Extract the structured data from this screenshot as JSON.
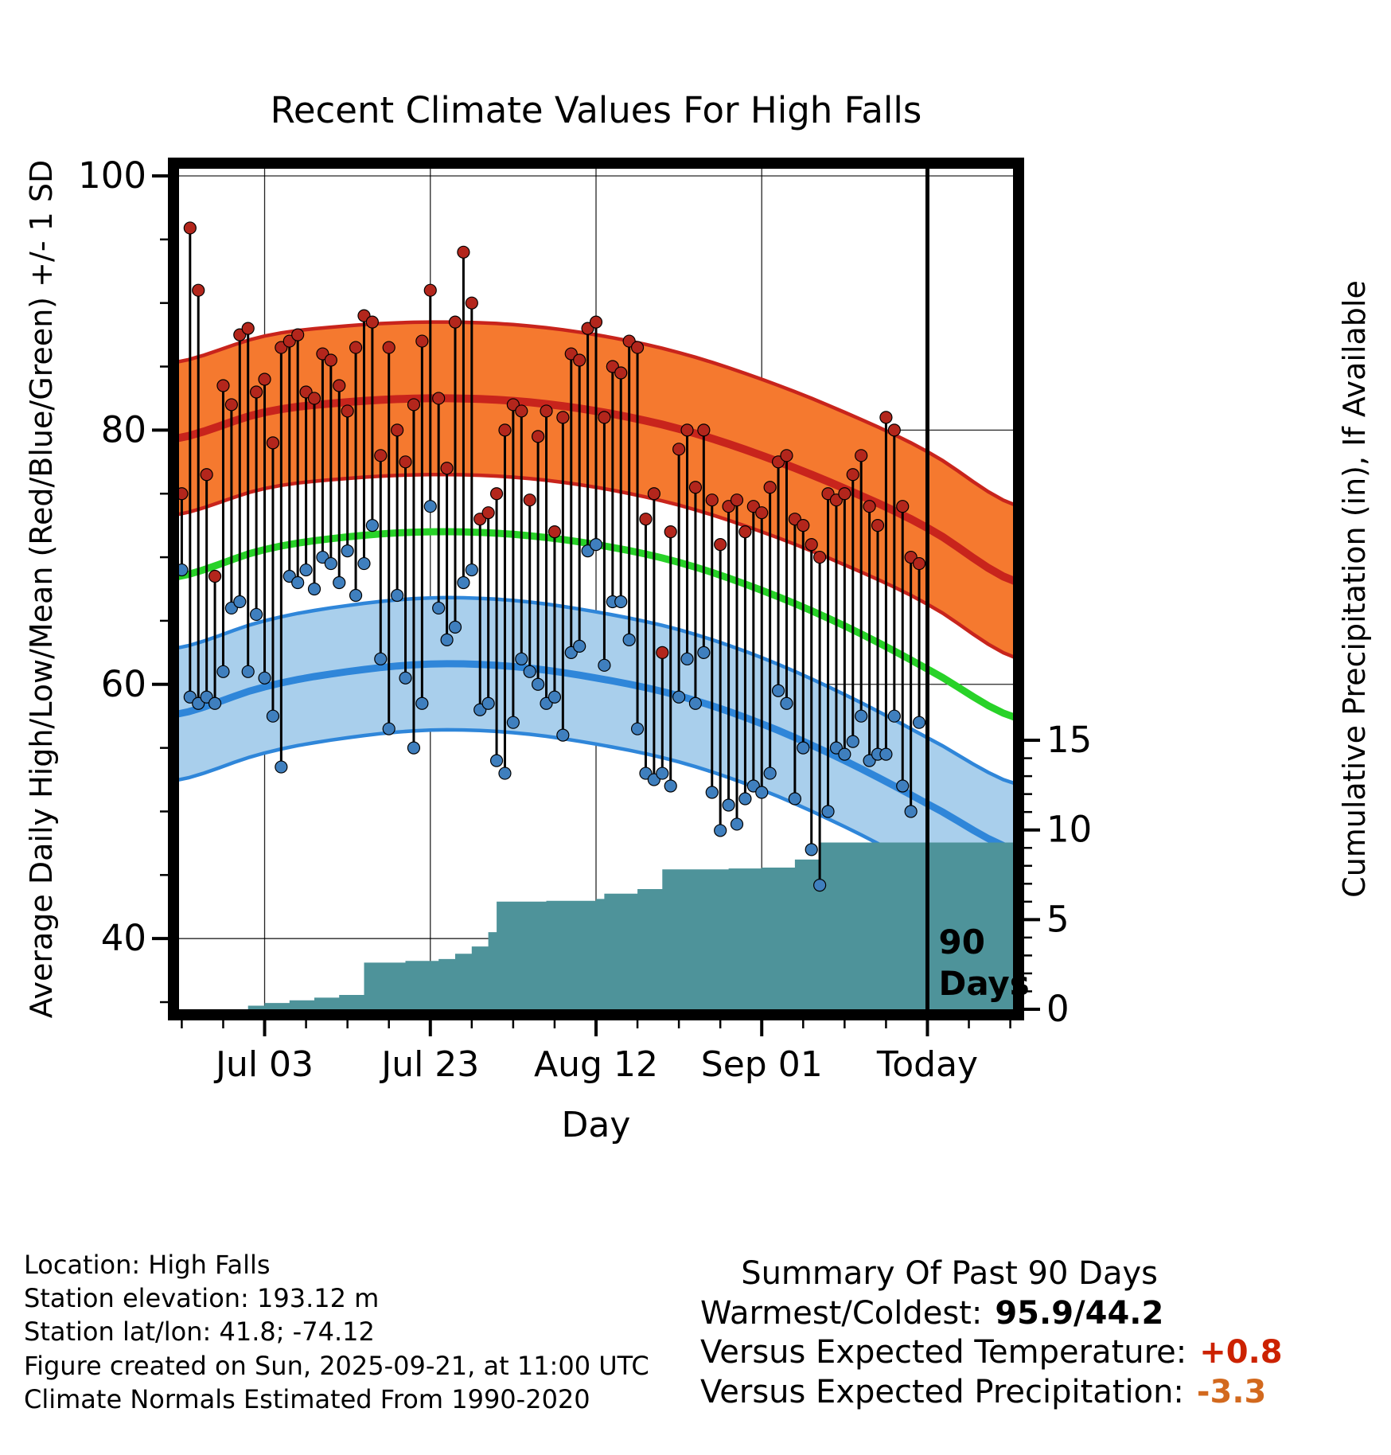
{
  "title": "Recent Climate Values For High Falls",
  "chart_data": {
    "type": "climate-composite",
    "title": "Recent Climate Values For High Falls",
    "x": {
      "label": "Day",
      "range": [
        -1,
        101
      ],
      "ticks": [
        {
          "day": 10,
          "label": "Jul 03"
        },
        {
          "day": 30,
          "label": "Jul 23"
        },
        {
          "day": 50,
          "label": "Aug 12"
        },
        {
          "day": 70,
          "label": "Sep 01"
        },
        {
          "day": 90,
          "label": "Today"
        }
      ],
      "minor_tick_step_days": 5
    },
    "y_temp": {
      "label": "Average Daily High/Low/Mean (Red/Blue/Green) +/- 1 SD",
      "range": [
        34,
        101
      ],
      "ticks": [
        40,
        60,
        80,
        100
      ],
      "minor_tick_step": 5
    },
    "y_precip": {
      "label": "Cumulative Precipitation (in), If Available",
      "ticks": [
        0,
        5,
        10,
        15
      ],
      "minor_tick_step": 1
    },
    "climatology": {
      "days": [
        -1,
        10,
        20,
        30,
        40,
        50,
        60,
        70,
        80,
        90,
        101
      ],
      "high_mean": [
        79.3,
        81.4,
        82.2,
        82.5,
        82.3,
        81.5,
        80.1,
        78.0,
        75.4,
        72.3,
        68.0
      ],
      "high_sd": 6.0,
      "mean": [
        68.4,
        70.6,
        71.6,
        72.0,
        71.8,
        71.0,
        69.6,
        67.4,
        64.6,
        61.2,
        57.3
      ],
      "low_mean": [
        57.6,
        59.8,
        61.0,
        61.6,
        61.4,
        60.5,
        59.1,
        56.9,
        54.0,
        50.6,
        46.9
      ],
      "low_sd": 5.2
    },
    "daily": {
      "first_day_index": 0,
      "highs": [
        75.0,
        95.9,
        91.0,
        76.5,
        68.5,
        83.5,
        82.0,
        87.5,
        88.0,
        83.0,
        84.0,
        79.0,
        86.5,
        87.0,
        87.5,
        83.0,
        82.5,
        86.0,
        85.5,
        83.5,
        81.5,
        86.5,
        89.0,
        88.5,
        78.0,
        86.5,
        80.0,
        77.5,
        82.0,
        87.0,
        91.0,
        82.5,
        77.0,
        88.5,
        94.0,
        90.0,
        73.0,
        73.5,
        75.0,
        80.0,
        82.0,
        81.5,
        74.5,
        79.5,
        81.5,
        72.0,
        81.0,
        86.0,
        85.5,
        88.0,
        88.5,
        81.0,
        85.0,
        84.5,
        87.0,
        86.5,
        73.0,
        75.0,
        62.5,
        72.0,
        78.5,
        80.0,
        75.5,
        80.0,
        74.5,
        71.0,
        74.0,
        74.5,
        72.0,
        74.0,
        73.5,
        75.5,
        77.5,
        78.0,
        73.0,
        72.5,
        71.0,
        70.0,
        75.0,
        74.5,
        75.0,
        76.5,
        78.0,
        74.0,
        72.5,
        81.0,
        80.0,
        74.0,
        70.0,
        69.5
      ],
      "lows": [
        69.0,
        59.0,
        58.5,
        59.0,
        58.5,
        61.0,
        66.0,
        66.5,
        61.0,
        65.5,
        60.5,
        57.5,
        53.5,
        68.5,
        68.0,
        69.0,
        67.5,
        70.0,
        69.5,
        68.0,
        70.5,
        67.0,
        69.5,
        72.5,
        62.0,
        56.5,
        67.0,
        60.5,
        55.0,
        58.5,
        74.0,
        66.0,
        63.5,
        64.5,
        68.0,
        69.0,
        58.0,
        58.5,
        54.0,
        53.0,
        57.0,
        62.0,
        61.0,
        60.0,
        58.5,
        59.0,
        56.0,
        62.5,
        63.0,
        70.5,
        71.0,
        61.5,
        66.5,
        66.5,
        63.5,
        56.5,
        53.0,
        52.5,
        53.0,
        52.0,
        59.0,
        62.0,
        58.5,
        62.5,
        51.5,
        48.5,
        50.5,
        49.0,
        51.0,
        52.0,
        51.5,
        53.0,
        59.5,
        58.5,
        51.0,
        55.0,
        47.0,
        44.2,
        50.0,
        55.0,
        54.5,
        55.5,
        57.5,
        54.0,
        54.5,
        54.5,
        57.5,
        52.0,
        50.0,
        57.0
      ]
    },
    "cumulative_precip_steps": [
      [
        0,
        0.0
      ],
      [
        8,
        0.2
      ],
      [
        10,
        0.35
      ],
      [
        13,
        0.5
      ],
      [
        16,
        0.65
      ],
      [
        19,
        0.8
      ],
      [
        22,
        2.6
      ],
      [
        27,
        2.7
      ],
      [
        31,
        2.8
      ],
      [
        33,
        3.1
      ],
      [
        35,
        3.5
      ],
      [
        37,
        4.3
      ],
      [
        38,
        6.0
      ],
      [
        44,
        6.05
      ],
      [
        50,
        6.15
      ],
      [
        51,
        6.45
      ],
      [
        55,
        6.7
      ],
      [
        58,
        7.8
      ],
      [
        66,
        7.85
      ],
      [
        70,
        7.9
      ],
      [
        74,
        8.35
      ],
      [
        77,
        9.3
      ],
      [
        101,
        9.3
      ]
    ],
    "annotation": {
      "day": 90,
      "lines": [
        "90",
        "Days"
      ]
    },
    "colors": {
      "high_band": "#F5792F",
      "high_line": "#C8241C",
      "mean_line": "#28D228",
      "low_band": "#A9CFEC",
      "low_line": "#2F86D9",
      "high_dot": "#B3261C",
      "low_dot": "#3F7FBE",
      "stem": "#000000",
      "precip_fill": "#4E939A",
      "grid": "#000000"
    }
  },
  "footer": {
    "left_lines": [
      "Location: High Falls",
      "Station elevation: 193.12 m",
      "Station lat/lon: 41.8; -74.12",
      "Figure created on Sun, 2025-09-21, at 11:00 UTC",
      "Climate Normals Estimated From 1990-2020"
    ],
    "summary": {
      "title": "Summary Of Past 90 Days",
      "rows": [
        {
          "label": "Warmest/Coldest:",
          "value": "95.9/44.2",
          "color": "#000000"
        },
        {
          "label": "Versus Expected Temperature:",
          "value": "+0.8",
          "color": "#CC2200"
        },
        {
          "label": "Versus Expected Precipitation:",
          "value": "-3.3",
          "color": "#D2691E"
        }
      ]
    }
  }
}
